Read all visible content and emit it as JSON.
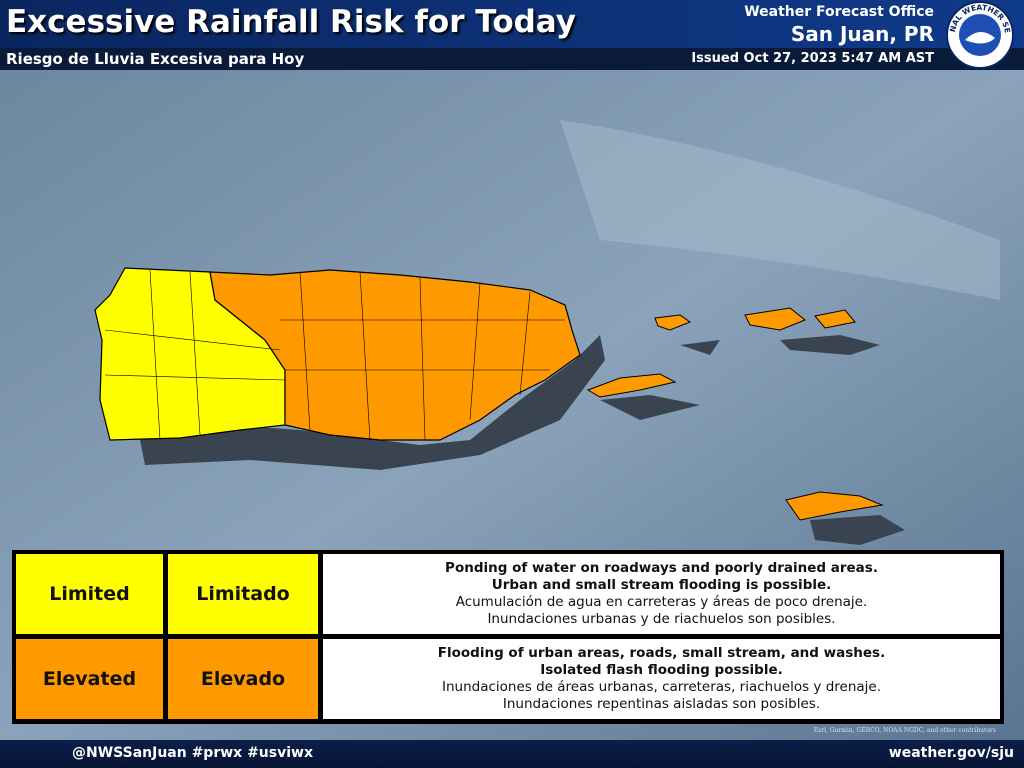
{
  "header": {
    "title": "Excessive Rainfall Risk for Today",
    "subtitle": "Riesgo de Lluvia Excesiva para Hoy",
    "office": "Weather Forecast Office",
    "location": "San Juan, PR",
    "issued": "Issued Oct 27, 2023 5:47 AM AST"
  },
  "logo": {
    "text": "NATIONAL WEATHER SERVICE"
  },
  "legend": {
    "rows": [
      {
        "english": "Limited",
        "spanish": "Limitado",
        "color": "#ffff00",
        "description": [
          "Ponding of water on roadways and poorly drained areas.",
          "Urban and small stream flooding is possible."
        ],
        "description_es": [
          "Acumulación de agua en carreteras y áreas de poco drenaje.",
          "Inundaciones urbanas y de riachuelos son posibles."
        ]
      },
      {
        "english": "Elevated",
        "spanish": "Elevado",
        "color": "#ff9900",
        "description": [
          "Flooding of urban areas, roads, small stream, and washes.",
          "Isolated flash flooding possible."
        ],
        "description_es": [
          "Inundaciones de áreas urbanas, carreteras, riachuelos y drenaje.",
          "Inundaciones repentinas aisladas son posibles."
        ]
      }
    ]
  },
  "footer": {
    "social": "@NWSSanJuan #prwx #usviwx",
    "website": "weather.gov/sju",
    "attribution": "Esri, Garmin, GEBCO, NOAA NGDC, and other contributors"
  }
}
